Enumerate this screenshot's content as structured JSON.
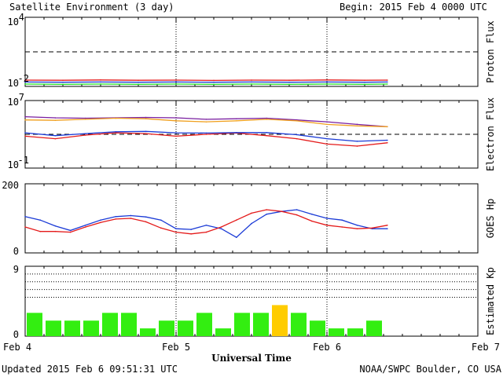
{
  "header": {
    "title": "Satellite Environment (3 day)",
    "begin": "Begin:  2015 Feb 4 0000 UTC"
  },
  "footer": {
    "updated": "Updated 2015 Feb  6 09:51:31 UTC",
    "credit": "NOAA/SWPC Boulder, CO USA"
  },
  "x_axis": {
    "label": "Universal Time",
    "ticks": [
      "Feb 4",
      "Feb 5",
      "Feb 6",
      "Feb 7"
    ]
  },
  "colors": {
    "red": "#e41a1a",
    "blue": "#1a3ad6",
    "green": "#22dd22",
    "purple": "#7a1fa0",
    "orange": "#f0a020",
    "kp_green": "#33ee11",
    "kp_yellow": "#ffcc00"
  },
  "chart_data": [
    {
      "type": "line",
      "name": "proton_flux",
      "ylabel": "Proton Flux",
      "yscale": "log",
      "ylim": [
        0.01,
        10000
      ],
      "yticks": [
        {
          "base": "10",
          "exp": "4"
        },
        {
          "base": "10",
          "exp": "-2"
        }
      ],
      "threshold": 10,
      "x_days": [
        0.0,
        0.25,
        0.5,
        0.75,
        1.0,
        1.25,
        1.5,
        1.75,
        2.0,
        2.25,
        2.4
      ],
      "series": [
        {
          "color": "#e41a1a",
          "values": [
            0.035,
            0.034,
            0.036,
            0.034,
            0.035,
            0.033,
            0.035,
            0.034,
            0.036,
            0.034,
            0.035
          ]
        },
        {
          "color": "#1a3ad6",
          "values": [
            0.024,
            0.023,
            0.024,
            0.023,
            0.024,
            0.023,
            0.024,
            0.023,
            0.024,
            0.023,
            0.024
          ]
        },
        {
          "color": "#22dd22",
          "values": [
            0.016,
            0.015,
            0.016,
            0.015,
            0.016,
            0.015,
            0.016,
            0.015,
            0.016,
            0.015,
            0.016
          ]
        }
      ]
    },
    {
      "type": "line",
      "name": "electron_flux",
      "ylabel": "Electron Flux",
      "yscale": "log",
      "ylim": [
        0.1,
        10000000
      ],
      "yticks": [
        {
          "base": "10",
          "exp": "7"
        },
        {
          "base": "10",
          "exp": "-1"
        }
      ],
      "threshold": 1000,
      "x_days": [
        0.0,
        0.2,
        0.4,
        0.6,
        0.8,
        1.0,
        1.2,
        1.4,
        1.6,
        1.8,
        2.0,
        2.2,
        2.4
      ],
      "series": [
        {
          "color": "#7a1fa0",
          "values": [
            120000,
            90000,
            80000,
            90000,
            100000,
            90000,
            60000,
            70000,
            80000,
            50000,
            30000,
            15000,
            8000
          ]
        },
        {
          "color": "#f0a020",
          "values": [
            50000,
            45000,
            60000,
            80000,
            70000,
            40000,
            30000,
            40000,
            60000,
            40000,
            15000,
            10000,
            8000
          ]
        },
        {
          "color": "#e41a1a",
          "values": [
            600,
            300,
            800,
            1500,
            1200,
            600,
            1000,
            1400,
            700,
            300,
            70,
            40,
            100
          ]
        },
        {
          "color": "#1a3ad6",
          "values": [
            1500,
            700,
            1200,
            2000,
            2200,
            1500,
            1400,
            1600,
            1600,
            900,
            300,
            150,
            200
          ]
        }
      ]
    },
    {
      "type": "line",
      "name": "goes_hp",
      "ylabel": "GOES Hp",
      "ylim": [
        0,
        200
      ],
      "yticks": [
        "200",
        "0"
      ],
      "x_days": [
        0.0,
        0.1,
        0.2,
        0.3,
        0.4,
        0.5,
        0.6,
        0.7,
        0.8,
        0.9,
        1.0,
        1.1,
        1.2,
        1.3,
        1.4,
        1.5,
        1.6,
        1.7,
        1.8,
        1.9,
        2.0,
        2.1,
        2.2,
        2.3,
        2.4
      ],
      "series": [
        {
          "color": "#1a3ad6",
          "values": [
            105,
            95,
            78,
            65,
            80,
            95,
            105,
            108,
            104,
            95,
            70,
            68,
            80,
            70,
            45,
            85,
            112,
            120,
            125,
            112,
            100,
            95,
            80,
            70,
            70
          ]
        },
        {
          "color": "#e41a1a",
          "values": [
            75,
            62,
            62,
            60,
            75,
            88,
            98,
            100,
            90,
            72,
            60,
            55,
            60,
            75,
            95,
            115,
            125,
            120,
            110,
            92,
            80,
            75,
            70,
            72,
            80
          ]
        }
      ]
    },
    {
      "type": "bar",
      "name": "estimated_kp",
      "ylabel": "Estimated Kp",
      "ylim": [
        0,
        9
      ],
      "yticks": [
        "9",
        "0"
      ],
      "bar_width_days": 0.125,
      "values": [
        3,
        2,
        2,
        2,
        3,
        3,
        1,
        2,
        2,
        3,
        1,
        3,
        3,
        4,
        3,
        2,
        1,
        1,
        2
      ],
      "bar_colors": [
        "g",
        "g",
        "g",
        "g",
        "g",
        "g",
        "g",
        "g",
        "g",
        "g",
        "g",
        "g",
        "g",
        "y",
        "g",
        "g",
        "g",
        "g",
        "g"
      ]
    }
  ]
}
